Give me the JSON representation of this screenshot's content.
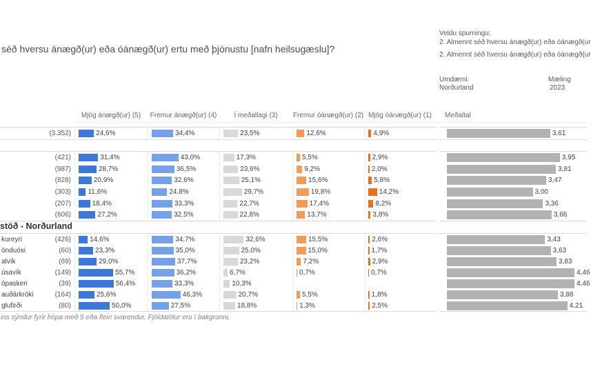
{
  "page": {
    "title": "séð hversu ánægð(ur) eða óánægð(ur) ertu með þjónustu [nafn heilsugæslu]?",
    "question_selector": {
      "label": "Veldu spurningu:",
      "option_1": "2. Almennt séð hversu ánægð(ur) eða óánægð(ur",
      "option_2": "2. Almennt séð hversu ánægð(ur) eða óánægð(ur"
    },
    "filters": {
      "district_label": "Umdæmi:",
      "district_value": "Norðurland",
      "measurement_label": "Mæling",
      "measurement_value": "2023"
    },
    "footnote": "ins sýndur fyrir hópa með 5 eða fleiri svarendur. Fjöldatölur eru í bakgrunni."
  },
  "chart_data": {
    "type": "bar",
    "unit": "%",
    "columns": [
      "Mjög ánægð(ur) (5)",
      "Fremur ánægð(ur) (4)",
      "Í meðallagi (3)",
      "Fremur óánægð(ur) (2)",
      "Mjög óánægð(ur) (1)",
      "Meðaltal"
    ],
    "value_colors": [
      "#3c78d8",
      "#74a1e8",
      "#d8d8d8",
      "#f09c58",
      "#e8711a"
    ],
    "mean_color": "#b2b2b2",
    "mean_scale_max": 5,
    "groups": [
      {
        "section": null,
        "rows": [
          {
            "label": "",
            "count": "(3.352)",
            "values": [
              24.6,
              34.4,
              23.5,
              12.6,
              4.9
            ],
            "labels": [
              "24,6%",
              "34,4%",
              "23,5%",
              "12,6%",
              "4,9%"
            ],
            "mean": 3.61,
            "mean_label": "3,61"
          }
        ]
      },
      {
        "section": null,
        "rows": [
          {
            "label": "",
            "count": "(421)",
            "values": [
              31.4,
              43.0,
              17.3,
              5.5,
              2.9
            ],
            "labels": [
              "31,4%",
              "43,0%",
              "17,3%",
              "5,5%",
              "2,9%"
            ],
            "mean": 3.95,
            "mean_label": "3,95"
          },
          {
            "label": "",
            "count": "(987)",
            "values": [
              28.7,
              36.5,
              23.6,
              9.2,
              2.0
            ],
            "labels": [
              "28,7%",
              "36,5%",
              "23,6%",
              "9,2%",
              "2,0%"
            ],
            "mean": 3.81,
            "mean_label": "3,81"
          },
          {
            "label": "",
            "count": "(828)",
            "values": [
              20.9,
              32.6,
              25.1,
              15.6,
              5.8
            ],
            "labels": [
              "20,9%",
              "32,6%",
              "25,1%",
              "15,6%",
              "5,8%"
            ],
            "mean": 3.47,
            "mean_label": "3,47"
          },
          {
            "label": "",
            "count": "(303)",
            "values": [
              11.6,
              24.8,
              29.7,
              19.8,
              14.2
            ],
            "labels": [
              "11,6%",
              "24,8%",
              "29,7%",
              "19,8%",
              "14,2%"
            ],
            "mean": 3.0,
            "mean_label": "3,00"
          },
          {
            "label": "",
            "count": "(207)",
            "values": [
              18.4,
              33.3,
              22.7,
              17.4,
              8.2
            ],
            "labels": [
              "18,4%",
              "33,3%",
              "22,7%",
              "17,4%",
              "8,2%"
            ],
            "mean": 3.36,
            "mean_label": "3,36"
          },
          {
            "label": "",
            "count": "(606)",
            "values": [
              27.2,
              32.5,
              22.8,
              13.7,
              3.8
            ],
            "labels": [
              "27,2%",
              "32,5%",
              "22,8%",
              "13,7%",
              "3,8%"
            ],
            "mean": 3.66,
            "mean_label": "3,66"
          }
        ]
      },
      {
        "section": "stöð - Norðurland",
        "rows": [
          {
            "label": "kureyri",
            "count": "(426)",
            "values": [
              14.6,
              34.7,
              32.6,
              15.5,
              2.6
            ],
            "labels": [
              "14,6%",
              "34,7%",
              "32,6%",
              "15,5%",
              "2,6%"
            ],
            "mean": 3.43,
            "mean_label": "3,43"
          },
          {
            "label": "önduósi",
            "count": "(60)",
            "values": [
              23.3,
              35.0,
              25.0,
              15.0,
              1.7
            ],
            "labels": [
              "23,3%",
              "35,0%",
              "25,0%",
              "15,0%",
              "1,7%"
            ],
            "mean": 3.63,
            "mean_label": "3,63"
          },
          {
            "label": "alvík",
            "count": "(69)",
            "values": [
              29.0,
              37.7,
              23.2,
              7.2,
              2.9
            ],
            "labels": [
              "29,0%",
              "37,7%",
              "23,2%",
              "7,2%",
              "2,9%"
            ],
            "mean": 3.83,
            "mean_label": "3,83"
          },
          {
            "label": "úsavík",
            "count": "(149)",
            "values": [
              55.7,
              36.2,
              6.7,
              0.7,
              0.7
            ],
            "labels": [
              "55,7%",
              "36,2%",
              "6,7%",
              "0,7%",
              "0,7%"
            ],
            "mean": 4.46,
            "mean_label": "4,46"
          },
          {
            "label": "ópaskeri",
            "count": "(39)",
            "values": [
              56.4,
              33.3,
              10.3,
              null,
              null
            ],
            "labels": [
              "56,4%",
              "33,3%",
              "10,3%",
              "",
              ""
            ],
            "mean": 4.46,
            "mean_label": "4,46"
          },
          {
            "label": "auðárkróki",
            "count": "(164)",
            "values": [
              25.6,
              46.3,
              20.7,
              5.5,
              1.8
            ],
            "labels": [
              "25,6%",
              "46,3%",
              "20,7%",
              "5,5%",
              "1,8%"
            ],
            "mean": 3.88,
            "mean_label": "3,88"
          },
          {
            "label": "glufirði",
            "count": "(80)",
            "values": [
              50.0,
              27.5,
              18.8,
              1.3,
              2.5
            ],
            "labels": [
              "50,0%",
              "27,5%",
              "18,8%",
              "1,3%",
              "2,5%"
            ],
            "mean": 4.21,
            "mean_label": "4,21"
          }
        ]
      }
    ]
  }
}
